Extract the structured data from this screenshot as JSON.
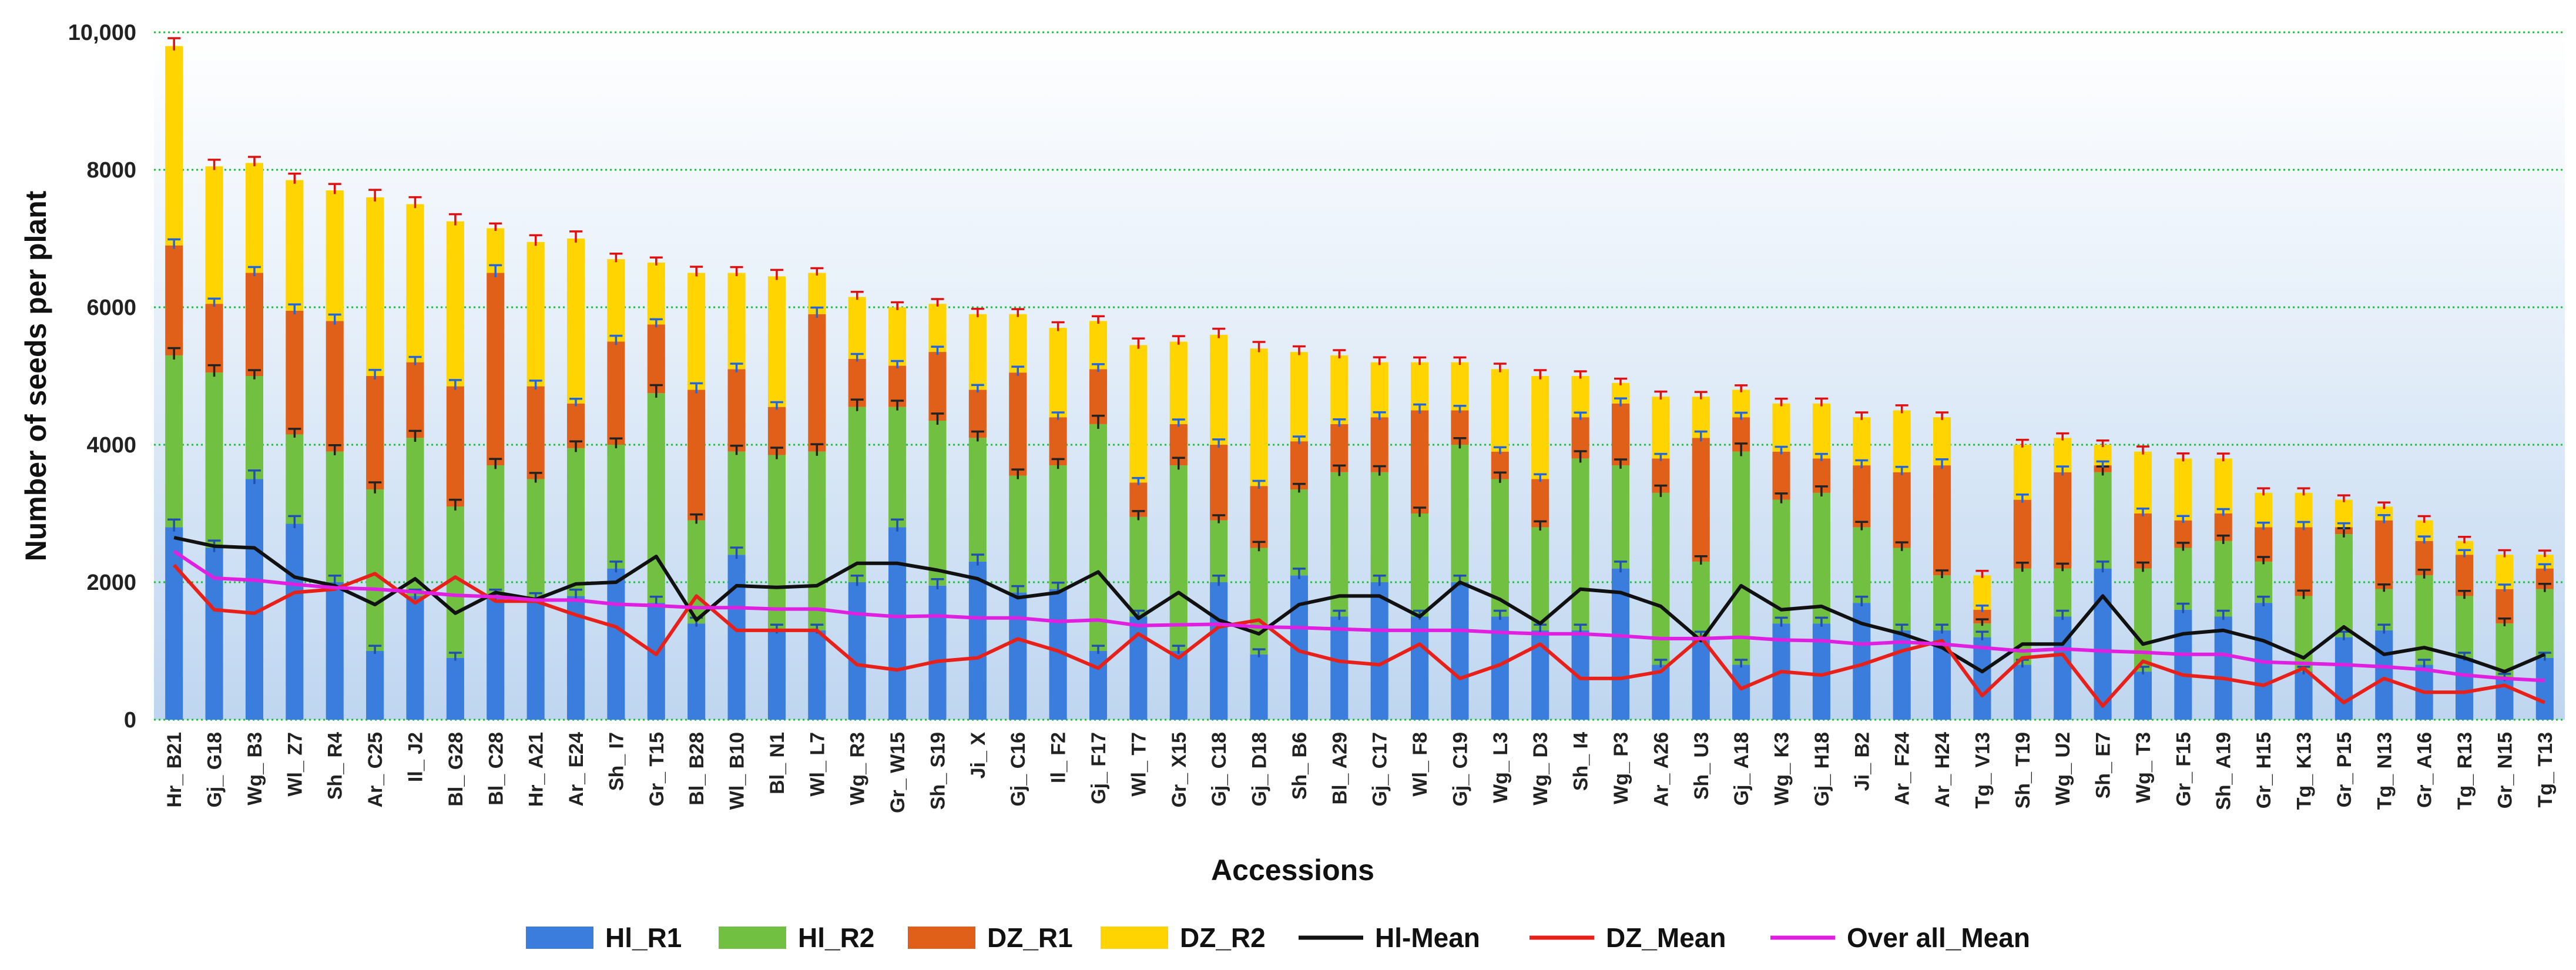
{
  "chart_data": {
    "type": "bar",
    "stacked": true,
    "title": "",
    "xlabel": "Accessions",
    "ylabel": "Number of seeds per plant",
    "ylim": [
      0,
      10000
    ],
    "yticks": [
      0,
      2000,
      4000,
      6000,
      8000,
      10000
    ],
    "ytick_labels": [
      "0",
      "2000",
      "4000",
      "6000",
      "8000",
      "10,000"
    ],
    "grid": "horizontal dotted",
    "legend_position": "bottom",
    "categories": [
      "Hr_ B21",
      "Gj_ G18",
      "Wg_ B3",
      "Wl_ Z7",
      "Sh_ R4",
      "Ar_ C25",
      "Il_ J2",
      "Bl_ G28",
      "Bl_ C28",
      "Hr_ A21",
      "Ar_ E24",
      "Sh_ I7",
      "Gr_ T15",
      "Bl_ B28",
      "Wl_ B10",
      "Bl_ N1",
      "Wl_ L7",
      "Wg_ R3",
      "Gr_ W15",
      "Sh_ S19",
      "Ji_ X",
      "Gj_ C16",
      "Il_ F2",
      "Gj_ F17",
      "Wl_ T7",
      "Gr_ X15",
      "Gj_ C18",
      "Gj_ D18",
      "Sh_ B6",
      "Bl_ A29",
      "Gj_ C17",
      "Wl_ F8",
      "Gj_ C19",
      "Wg_ L3",
      "Wg_ D3",
      "Sh_ I4",
      "Wg_ P3",
      "Ar_ A26",
      "Sh_ U3",
      "Gj_ A18",
      "Wg_ K3",
      "Gj_ H18",
      "Ji_ B2",
      "Ar_ F24",
      "Ar_ H24",
      "Tg_ V13",
      "Sh_ T19",
      "Wg_ U2",
      "Sh_ E7",
      "Wg_ T3",
      "Gr_ F15",
      "Sh_ A19",
      "Gr_ H15",
      "Tg_ K13",
      "Gr_ P15",
      "Tg_ N13",
      "Gr_ A16",
      "Tg_ R13",
      "Gr_ N15",
      "Tg_ T13"
    ],
    "series": [
      {
        "name": "Hl_R1",
        "kind": "bar",
        "color": "#3B7DDD",
        "values": [
          2800,
          2500,
          3500,
          2850,
          2000,
          1000,
          1800,
          900,
          1800,
          1750,
          1800,
          2200,
          1700,
          1400,
          2400,
          1300,
          1300,
          2000,
          2800,
          1950,
          2300,
          1850,
          1900,
          1000,
          1500,
          1000,
          2000,
          950,
          2100,
          1500,
          2000,
          1500,
          2000,
          1500,
          1300,
          1300,
          2200,
          800,
          1200,
          800,
          1400,
          1400,
          1700,
          1300,
          1300,
          1200,
          800,
          1500,
          2200,
          700,
          1600,
          1500,
          1700,
          700,
          1200,
          1300,
          800,
          900,
          600,
          900
        ]
      },
      {
        "name": "Hl_R2",
        "kind": "bar",
        "color": "#72C041",
        "values": [
          2500,
          2550,
          1500,
          1300,
          1900,
          2350,
          2300,
          2200,
          1900,
          1750,
          2150,
          1800,
          3050,
          1500,
          1500,
          2550,
          2600,
          2550,
          1750,
          2400,
          1800,
          1700,
          1800,
          3300,
          1450,
          2700,
          900,
          1550,
          1250,
          2100,
          1600,
          1500,
          2000,
          2000,
          1500,
          2500,
          1500,
          2500,
          1100,
          3100,
          1800,
          1900,
          1100,
          1200,
          800,
          200,
          1400,
          700,
          1400,
          1500,
          900,
          1100,
          600,
          1100,
          1500,
          600,
          1300,
          900,
          800,
          1000
        ]
      },
      {
        "name": "DZ_R1",
        "kind": "bar",
        "color": "#E0601A",
        "values": [
          1600,
          1000,
          1500,
          1800,
          1900,
          1650,
          1100,
          1750,
          2800,
          1350,
          650,
          1500,
          1000,
          1900,
          1200,
          700,
          2000,
          700,
          600,
          1000,
          700,
          1500,
          700,
          800,
          500,
          600,
          1100,
          900,
          700,
          700,
          800,
          1500,
          500,
          400,
          700,
          600,
          900,
          500,
          1800,
          500,
          700,
          500,
          900,
          1100,
          1600,
          200,
          1000,
          1400,
          100,
          800,
          400,
          400,
          500,
          1000,
          100,
          1000,
          500,
          600,
          500,
          300
        ]
      },
      {
        "name": "DZ_R2",
        "kind": "bar",
        "color": "#FFD400",
        "values": [
          2900,
          2000,
          1600,
          1900,
          1900,
          2600,
          2300,
          2400,
          650,
          2100,
          2400,
          1200,
          900,
          1700,
          1400,
          1900,
          600,
          900,
          850,
          700,
          1100,
          850,
          1300,
          700,
          2000,
          1200,
          1600,
          2000,
          1300,
          1000,
          800,
          700,
          700,
          1200,
          1500,
          600,
          300,
          900,
          600,
          400,
          700,
          800,
          700,
          900,
          700,
          500,
          800,
          500,
          300,
          900,
          900,
          800,
          500,
          500,
          400,
          200,
          300,
          200,
          500,
          200
        ]
      },
      {
        "name": "Hl-Mean",
        "kind": "line",
        "color": "#111111",
        "values": [
          2650,
          2525,
          2500,
          2075,
          1950,
          1675,
          2050,
          1550,
          1850,
          1750,
          1975,
          2000,
          2375,
          1450,
          1950,
          1925,
          1950,
          2275,
          2275,
          2175,
          2050,
          1775,
          1850,
          2150,
          1475,
          1850,
          1450,
          1250,
          1675,
          1800,
          1800,
          1500,
          2000,
          1750,
          1400,
          1900,
          1850,
          1650,
          1150,
          1950,
          1600,
          1650,
          1400,
          1250,
          1050,
          700,
          1100,
          1100,
          1800,
          1100,
          1250,
          1300,
          1150,
          900,
          1350,
          950,
          1050,
          900,
          700,
          950
        ]
      },
      {
        "name": "DZ_Mean",
        "kind": "line",
        "color": "#E8201A",
        "values": [
          2250,
          1600,
          1550,
          1850,
          1900,
          2125,
          1700,
          2075,
          1725,
          1725,
          1525,
          1350,
          950,
          1800,
          1300,
          1300,
          1300,
          800,
          725,
          850,
          900,
          1175,
          1000,
          750,
          1250,
          900,
          1350,
          1450,
          1000,
          850,
          800,
          1100,
          600,
          800,
          1100,
          600,
          600,
          700,
          1200,
          450,
          700,
          650,
          800,
          1000,
          1150,
          350,
          900,
          950,
          200,
          850,
          650,
          600,
          500,
          750,
          250,
          600,
          400,
          400,
          500,
          250
        ]
      },
      {
        "name": "Over all_Mean",
        "kind": "line",
        "color": "#E020E0",
        "values": [
          2450,
          2060,
          2030,
          1970,
          1920,
          1900,
          1860,
          1810,
          1790,
          1740,
          1740,
          1680,
          1660,
          1630,
          1630,
          1610,
          1610,
          1540,
          1500,
          1510,
          1480,
          1480,
          1430,
          1450,
          1370,
          1380,
          1390,
          1350,
          1340,
          1320,
          1300,
          1300,
          1300,
          1270,
          1250,
          1250,
          1220,
          1180,
          1180,
          1200,
          1160,
          1150,
          1100,
          1130,
          1100,
          1050,
          1000,
          1030,
          1000,
          980,
          950,
          950,
          840,
          820,
          800,
          770,
          730,
          650,
          600,
          570
        ]
      }
    ],
    "error_bar_colors": [
      "#1F4FB0",
      "#222222",
      "#2266DD",
      "#E01010"
    ]
  }
}
